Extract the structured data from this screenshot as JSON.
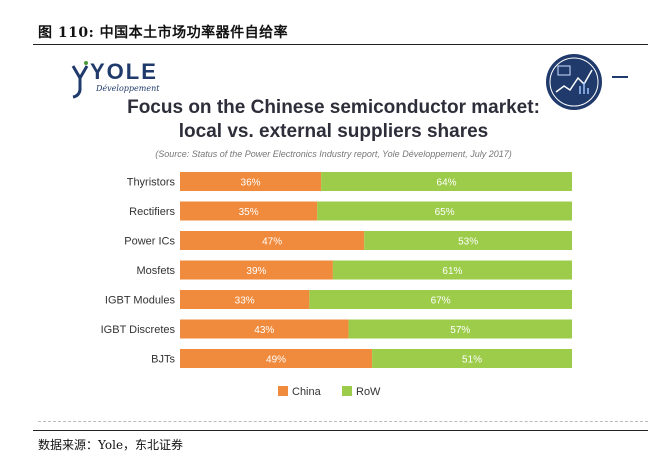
{
  "figure_caption": "图 110: 中国本土市场功率器件自给率",
  "logo": {
    "word": "YOLE",
    "sub": "Développement"
  },
  "chart_data": {
    "type": "bar",
    "orientation": "horizontal",
    "stacked": true,
    "title": "Focus on the Chinese semiconductor market:",
    "subtitle": "local vs. external suppliers shares",
    "source": "(Source: Status of the Power Electronics Industry report, Yole Développement, July 2017)",
    "categories": [
      "Thyristors",
      "Rectifiers",
      "Power ICs",
      "Mosfets",
      "IGBT Modules",
      "IGBT Discretes",
      "BJTs"
    ],
    "series": [
      {
        "name": "China",
        "values": [
          36,
          35,
          47,
          39,
          33,
          43,
          49
        ],
        "labels": [
          "36%",
          "35%",
          "47%",
          "39%",
          "33%",
          "43%",
          "49%"
        ]
      },
      {
        "name": "RoW",
        "values": [
          64,
          65,
          53,
          61,
          67,
          57,
          51
        ],
        "labels": [
          "64%",
          "65%",
          "53%",
          "61%",
          "67%",
          "57%",
          "51%"
        ]
      }
    ],
    "xlim": [
      0,
      100
    ],
    "legend": "bottom-center",
    "colors": {
      "China": "#f08a3c",
      "RoW": "#9ccc4a"
    }
  },
  "footer_note": "数据来源：Yole，东北证券"
}
